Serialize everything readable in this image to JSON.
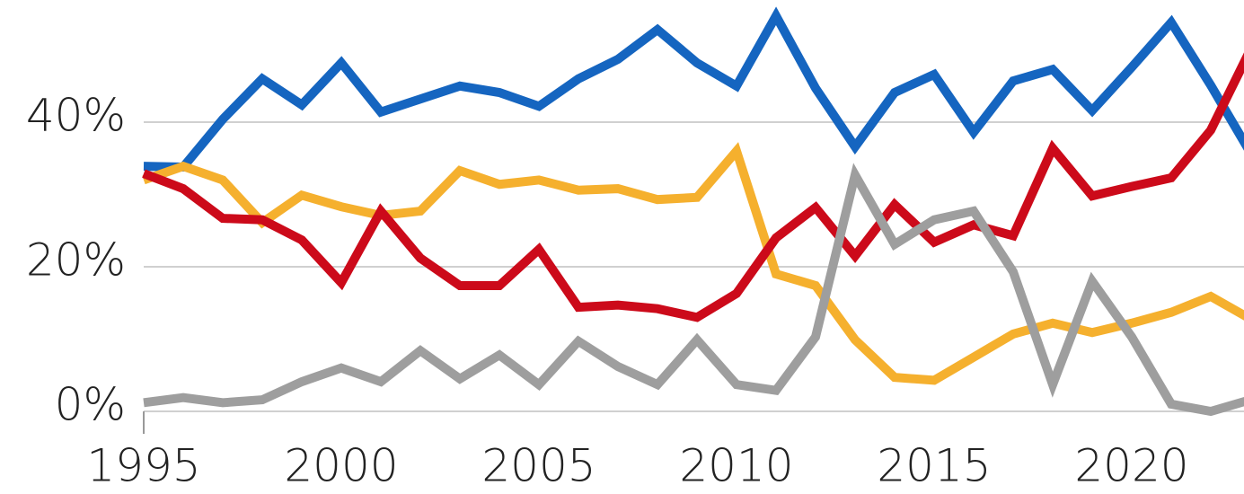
{
  "chart_data": {
    "type": "line",
    "x": [
      1995,
      1996,
      1997,
      1998,
      1999,
      2000,
      2001,
      2002,
      2003,
      2004,
      2005,
      2006,
      2007,
      2008,
      2009,
      2010,
      2011,
      2012,
      2013,
      2014,
      2015,
      2016,
      2017,
      2018,
      2019,
      2020,
      2021,
      2022,
      2023
    ],
    "series": [
      {
        "color": "#1565c0",
        "values": [
          33.9,
          33.8,
          40.4,
          46,
          42.4,
          48.2,
          41.4,
          43.2,
          45,
          44.1,
          42.2,
          46,
          48.7,
          52.8,
          48.2,
          45,
          54.7,
          44.7,
          36.6,
          44.1,
          46.6,
          38.6,
          45.7,
          47.3,
          41.6,
          47.6,
          53.8,
          45.1,
          35.8
        ]
      },
      {
        "color": "#f5b02e",
        "values": [
          32,
          33.9,
          32,
          26.1,
          29.9,
          28.3,
          27.1,
          27.7,
          33.3,
          31.4,
          32,
          30.6,
          30.8,
          29.3,
          29.6,
          36,
          19,
          17.4,
          9.9,
          4.7,
          4.3,
          7.5,
          10.7,
          12.2,
          10.9,
          12.2,
          13.7,
          15.9,
          12.8
        ]
      },
      {
        "color": "#cc0a1a",
        "values": [
          32.9,
          30.8,
          26.7,
          26.5,
          23.7,
          17.8,
          27.7,
          21.2,
          17.4,
          17.4,
          22.4,
          14.4,
          14.7,
          14.2,
          13,
          16.3,
          24,
          28.2,
          21.5,
          28.6,
          23.4,
          25.8,
          24.3,
          36.4,
          29.8,
          31.1,
          32.3,
          38.9,
          50
        ]
      },
      {
        "color": "#9e9e9e",
        "values": [
          1.2,
          1.9,
          1.2,
          1.6,
          4.1,
          6,
          4.1,
          8.4,
          4.5,
          7.8,
          3.7,
          9.7,
          6.2,
          3.7,
          9.9,
          3.7,
          2.9,
          10.3,
          32.7,
          23.1,
          26.5,
          27.7,
          19.3,
          3.7,
          18,
          10.3,
          1,
          0,
          1.6
        ]
      }
    ],
    "xlim": [
      1995,
      2023
    ],
    "xticks": [
      1995,
      2000,
      2005,
      2010,
      2015,
      2020
    ],
    "ylim": [
      0,
      56.9
    ],
    "yticks": [
      {
        "value": 0,
        "label": "0%"
      },
      {
        "value": 20,
        "label": "20%"
      },
      {
        "value": 40,
        "label": "40%"
      }
    ],
    "grid": true
  }
}
